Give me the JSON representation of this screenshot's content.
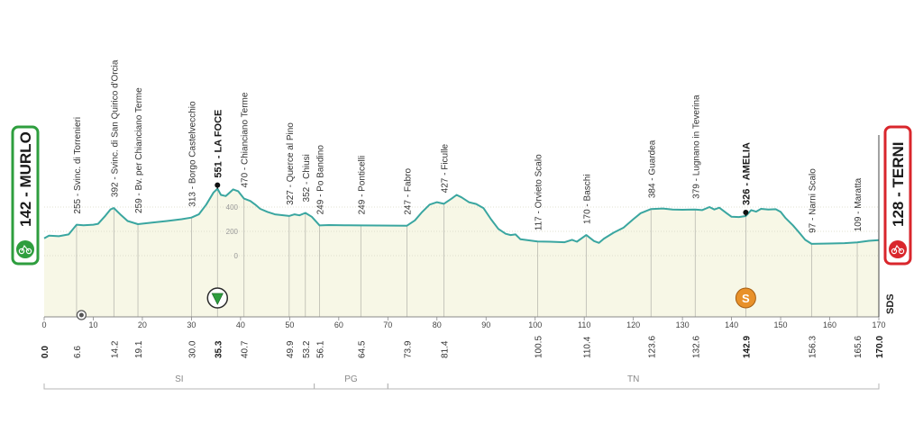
{
  "chart_data": {
    "type": "area",
    "title": "",
    "xlabel": "",
    "ylabel": "",
    "xlim": [
      0,
      170
    ],
    "ylim": [
      0,
      700
    ],
    "x_ticks": [
      0,
      10,
      20,
      30,
      40,
      50,
      60,
      70,
      80,
      90,
      100,
      110,
      120,
      130,
      140,
      150,
      160,
      170
    ],
    "y_ticks": [
      0,
      200,
      400
    ],
    "grid": false,
    "start": {
      "label": "142 - MURLO",
      "color": "#2e9e3e"
    },
    "finish": {
      "label": "128 - TERNI",
      "color": "#d9262c"
    },
    "side_label": "SDS",
    "profile": {
      "name": "elevation",
      "color": "#3aa6a0",
      "fill": "#f7f7e6",
      "points": [
        {
          "x": 0,
          "y": 142
        },
        {
          "x": 1,
          "y": 165
        },
        {
          "x": 3,
          "y": 160
        },
        {
          "x": 5,
          "y": 175
        },
        {
          "x": 6.6,
          "y": 255
        },
        {
          "x": 8,
          "y": 250
        },
        {
          "x": 10,
          "y": 255
        },
        {
          "x": 11,
          "y": 262
        },
        {
          "x": 12.5,
          "y": 330
        },
        {
          "x": 13.5,
          "y": 380
        },
        {
          "x": 14.2,
          "y": 392
        },
        {
          "x": 15.5,
          "y": 340
        },
        {
          "x": 17,
          "y": 285
        },
        {
          "x": 19.1,
          "y": 259
        },
        {
          "x": 22,
          "y": 272
        },
        {
          "x": 25,
          "y": 285
        },
        {
          "x": 28,
          "y": 300
        },
        {
          "x": 30,
          "y": 313
        },
        {
          "x": 31.5,
          "y": 340
        },
        {
          "x": 33,
          "y": 420
        },
        {
          "x": 34.5,
          "y": 520
        },
        {
          "x": 35.3,
          "y": 551
        },
        {
          "x": 36,
          "y": 500
        },
        {
          "x": 37,
          "y": 490
        },
        {
          "x": 38.5,
          "y": 545
        },
        {
          "x": 39.5,
          "y": 530
        },
        {
          "x": 40.7,
          "y": 470
        },
        {
          "x": 42,
          "y": 450
        },
        {
          "x": 43,
          "y": 420
        },
        {
          "x": 44,
          "y": 385
        },
        {
          "x": 45.5,
          "y": 360
        },
        {
          "x": 47,
          "y": 340
        },
        {
          "x": 49.9,
          "y": 327
        },
        {
          "x": 51,
          "y": 340
        },
        {
          "x": 52,
          "y": 332
        },
        {
          "x": 53.2,
          "y": 352
        },
        {
          "x": 54.5,
          "y": 320
        },
        {
          "x": 56.1,
          "y": 249
        },
        {
          "x": 58,
          "y": 252
        },
        {
          "x": 62,
          "y": 250
        },
        {
          "x": 64.5,
          "y": 249
        },
        {
          "x": 68,
          "y": 248
        },
        {
          "x": 73.9,
          "y": 247
        },
        {
          "x": 75.5,
          "y": 290
        },
        {
          "x": 77,
          "y": 360
        },
        {
          "x": 78.5,
          "y": 420
        },
        {
          "x": 80,
          "y": 440
        },
        {
          "x": 81.4,
          "y": 427
        },
        {
          "x": 83,
          "y": 470
        },
        {
          "x": 84,
          "y": 500
        },
        {
          "x": 85,
          "y": 480
        },
        {
          "x": 86.5,
          "y": 440
        },
        {
          "x": 88,
          "y": 425
        },
        {
          "x": 89.5,
          "y": 390
        },
        {
          "x": 91,
          "y": 300
        },
        {
          "x": 92.5,
          "y": 220
        },
        {
          "x": 94,
          "y": 180
        },
        {
          "x": 95,
          "y": 170
        },
        {
          "x": 96,
          "y": 175
        },
        {
          "x": 97,
          "y": 135
        },
        {
          "x": 100.5,
          "y": 117
        },
        {
          "x": 103,
          "y": 115
        },
        {
          "x": 106,
          "y": 110
        },
        {
          "x": 107.5,
          "y": 130
        },
        {
          "x": 108.5,
          "y": 115
        },
        {
          "x": 110.4,
          "y": 170
        },
        {
          "x": 112,
          "y": 120
        },
        {
          "x": 113,
          "y": 105
        },
        {
          "x": 114,
          "y": 140
        },
        {
          "x": 116,
          "y": 190
        },
        {
          "x": 118,
          "y": 230
        },
        {
          "x": 120,
          "y": 300
        },
        {
          "x": 121.5,
          "y": 350
        },
        {
          "x": 123.6,
          "y": 384
        },
        {
          "x": 126,
          "y": 388
        },
        {
          "x": 128,
          "y": 380
        },
        {
          "x": 130,
          "y": 378
        },
        {
          "x": 132.6,
          "y": 379
        },
        {
          "x": 134,
          "y": 375
        },
        {
          "x": 135.5,
          "y": 400
        },
        {
          "x": 136.5,
          "y": 380
        },
        {
          "x": 137.5,
          "y": 395
        },
        {
          "x": 139,
          "y": 350
        },
        {
          "x": 140,
          "y": 320
        },
        {
          "x": 141.5,
          "y": 318
        },
        {
          "x": 142.9,
          "y": 326
        },
        {
          "x": 144,
          "y": 375
        },
        {
          "x": 145,
          "y": 362
        },
        {
          "x": 146,
          "y": 385
        },
        {
          "x": 147.5,
          "y": 380
        },
        {
          "x": 149,
          "y": 382
        },
        {
          "x": 150,
          "y": 360
        },
        {
          "x": 151,
          "y": 310
        },
        {
          "x": 152.5,
          "y": 250
        },
        {
          "x": 154,
          "y": 180
        },
        {
          "x": 155,
          "y": 130
        },
        {
          "x": 156.3,
          "y": 97
        },
        {
          "x": 160,
          "y": 100
        },
        {
          "x": 163,
          "y": 103
        },
        {
          "x": 165.6,
          "y": 109
        },
        {
          "x": 168,
          "y": 122
        },
        {
          "x": 170,
          "y": 128
        }
      ]
    },
    "waypoints": [
      {
        "km": 6.6,
        "alt": 255,
        "label": "255 - Svinc. di Torrenieri",
        "bold": false
      },
      {
        "km": 14.2,
        "alt": 392,
        "label": "392 - Svinc. di San Quirico d'Orcia",
        "bold": false
      },
      {
        "km": 19.1,
        "alt": 259,
        "label": "259 - Bv. per Chianciano Terme",
        "bold": false
      },
      {
        "km": 30.0,
        "alt": 313,
        "label": "313 - Borgo Castelvecchio",
        "bold": false
      },
      {
        "km": 35.3,
        "alt": 551,
        "label": "551 - LA FOCE",
        "bold": true
      },
      {
        "km": 40.7,
        "alt": 470,
        "label": "470 - Chianciano Terme",
        "bold": false
      },
      {
        "km": 49.9,
        "alt": 327,
        "label": "327 - Querce al Pino",
        "bold": false
      },
      {
        "km": 53.2,
        "alt": 352,
        "label": "352 - Chiusi",
        "bold": false
      },
      {
        "km": 56.1,
        "alt": 249,
        "label": "249 - Po Bandino",
        "bold": false
      },
      {
        "km": 64.5,
        "alt": 249,
        "label": "249 - Ponticelli",
        "bold": false
      },
      {
        "km": 73.9,
        "alt": 247,
        "label": "247 - Fabro",
        "bold": false
      },
      {
        "km": 81.4,
        "alt": 427,
        "label": "427 - Ficulle",
        "bold": false
      },
      {
        "km": 100.5,
        "alt": 117,
        "label": "117 - Orvieto Scalo",
        "bold": false
      },
      {
        "km": 110.4,
        "alt": 170,
        "label": "170 - Baschi",
        "bold": false
      },
      {
        "km": 123.6,
        "alt": 384,
        "label": "384 - Guardea",
        "bold": false
      },
      {
        "km": 132.6,
        "alt": 379,
        "label": "379 - Lugnano in Teverina",
        "bold": false
      },
      {
        "km": 142.9,
        "alt": 326,
        "label": "326 - AMELIA",
        "bold": true
      },
      {
        "km": 156.3,
        "alt": 97,
        "label": "97 - Narni Scalo",
        "bold": false
      },
      {
        "km": 165.6,
        "alt": 109,
        "label": "109 - Maratta",
        "bold": false
      }
    ],
    "km_labels_bottom": [
      {
        "km": 0,
        "label": "0.0",
        "bold": true
      },
      {
        "km": 6.6,
        "label": "6.6",
        "bold": false
      },
      {
        "km": 14.2,
        "label": "14.2",
        "bold": false
      },
      {
        "km": 19.1,
        "label": "19.1",
        "bold": false
      },
      {
        "km": 30.0,
        "label": "30.0",
        "bold": false
      },
      {
        "km": 35.3,
        "label": "35.3",
        "bold": true
      },
      {
        "km": 40.7,
        "label": "40.7",
        "bold": false
      },
      {
        "km": 49.9,
        "label": "49.9",
        "bold": false
      },
      {
        "km": 53.2,
        "label": "53.2",
        "bold": false
      },
      {
        "km": 56.1,
        "label": "56.1",
        "bold": false
      },
      {
        "km": 64.5,
        "label": "64.5",
        "bold": false
      },
      {
        "km": 73.9,
        "label": "73.9",
        "bold": false
      },
      {
        "km": 81.4,
        "label": "81.4",
        "bold": false
      },
      {
        "km": 100.5,
        "label": "100.5",
        "bold": false
      },
      {
        "km": 110.4,
        "label": "110.4",
        "bold": false
      },
      {
        "km": 123.6,
        "label": "123.6",
        "bold": false
      },
      {
        "km": 132.6,
        "label": "132.6",
        "bold": false
      },
      {
        "km": 142.9,
        "label": "142.9",
        "bold": true
      },
      {
        "km": 156.3,
        "label": "156.3",
        "bold": false
      },
      {
        "km": 165.6,
        "label": "165.6",
        "bold": false
      },
      {
        "km": 170.0,
        "label": "170.0",
        "bold": true
      }
    ],
    "regions": [
      {
        "label": "SI",
        "from": 0,
        "to": 55
      },
      {
        "label": "PG",
        "from": 55,
        "to": 70
      },
      {
        "label": "TN",
        "from": 70,
        "to": 170
      }
    ],
    "markers": [
      {
        "km": 35.3,
        "type": "kom",
        "label": "",
        "color": "#2e9e3e"
      },
      {
        "km": 142.9,
        "type": "sprint",
        "label": "S",
        "color": "#e8912a"
      },
      {
        "km": 7.6,
        "type": "feed",
        "label": "",
        "color": "#555555"
      }
    ]
  }
}
